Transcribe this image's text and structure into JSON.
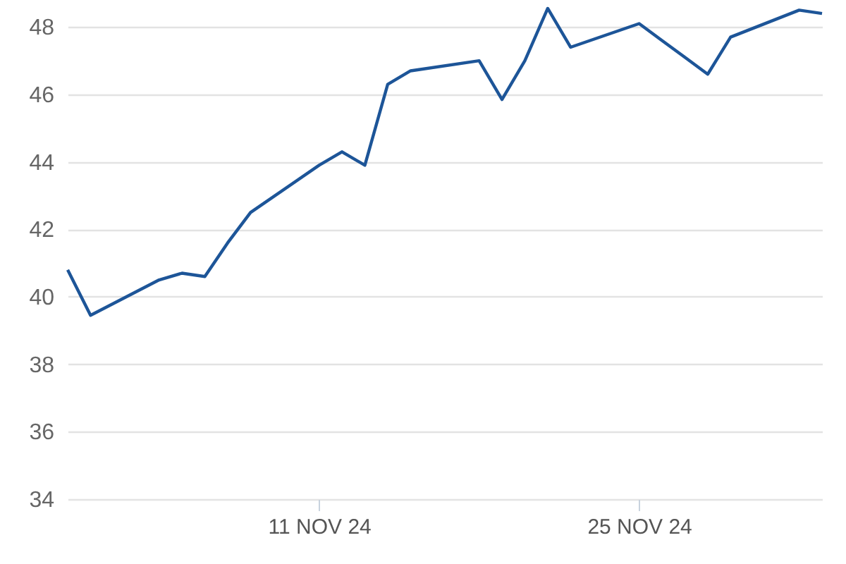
{
  "chart_data": {
    "type": "line",
    "x": [
      "--10-31",
      "--11-01",
      "--11-04",
      "--11-05",
      "--11-06",
      "--11-07",
      "--11-08",
      "--11-11",
      "--11-12",
      "--11-13",
      "--11-14",
      "--11-15",
      "--11-18",
      "--11-19",
      "--11-20",
      "--11-21",
      "--11-22",
      "--11-25",
      "--11-26",
      "--11-27",
      "--11-28",
      "--11-29",
      "--12-02",
      "--12-03"
    ],
    "series": [
      {
        "color": "#1d5598",
        "values": [
          40.8,
          39.45,
          40.5,
          40.7,
          40.6,
          41.6,
          42.5,
          43.9,
          44.3,
          43.9,
          46.3,
          46.7,
          47.0,
          45.85,
          47.0,
          48.55,
          47.4,
          48.1,
          47.6,
          47.1,
          46.6,
          47.7,
          48.5,
          48.4
        ]
      }
    ],
    "xlim": [
      "--10-31",
      "--12-03"
    ],
    "xticks": [
      {
        "value": "--11-11",
        "label": "11 NOV 24"
      },
      {
        "value": "--11-25",
        "label": "25 NOV 24"
      }
    ],
    "ylim": [
      34,
      48.8
    ],
    "yticks": [
      34,
      36,
      38,
      40,
      42,
      44,
      46,
      48
    ],
    "grid": "y",
    "marker": "none",
    "line_style": "solid"
  }
}
